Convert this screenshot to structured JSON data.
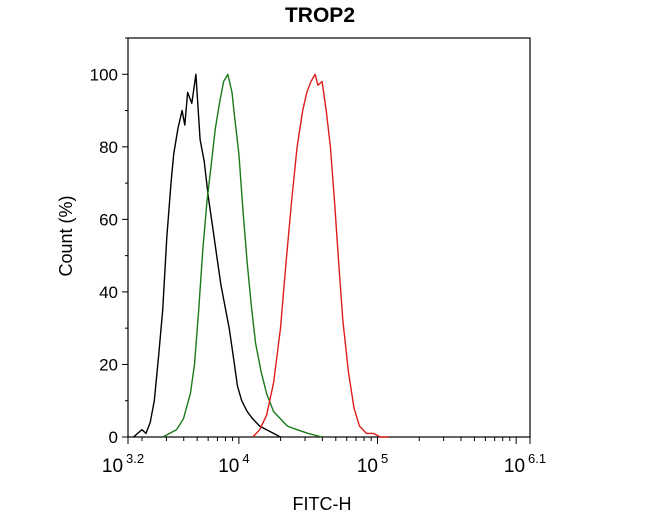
{
  "chart_data": {
    "type": "line",
    "title": "TROP2",
    "xlabel": "FITC-H",
    "ylabel": "Count  (%)",
    "x_scale": "log10",
    "xlim": [
      3.2,
      6.1
    ],
    "ylim": [
      0,
      110
    ],
    "x_ticks": [
      {
        "value": 3.2,
        "base": "10",
        "exp": "3.2"
      },
      {
        "value": 4,
        "base": "10",
        "exp": "4"
      },
      {
        "value": 5,
        "base": "10",
        "exp": "5"
      },
      {
        "value": 6.1,
        "base": "10",
        "exp": "6.1"
      }
    ],
    "y_ticks": [
      0,
      20,
      40,
      60,
      80,
      100
    ],
    "grid": false,
    "legend": "none",
    "series": [
      {
        "color": "#000000",
        "x": [
          3.24,
          3.27,
          3.3,
          3.33,
          3.36,
          3.39,
          3.42,
          3.45,
          3.48,
          3.51,
          3.53,
          3.56,
          3.59,
          3.61,
          3.63,
          3.66,
          3.69,
          3.72,
          3.75,
          3.78,
          3.81,
          3.84,
          3.87,
          3.9,
          3.93,
          3.96,
          3.99,
          4.02,
          4.06,
          4.1,
          4.15,
          4.2,
          4.25,
          4.3
        ],
        "y": [
          0,
          1,
          2,
          1,
          4,
          10,
          22,
          35,
          55,
          70,
          78,
          85,
          90,
          86,
          95,
          92,
          100,
          82,
          76,
          66,
          58,
          50,
          42,
          36,
          30,
          22,
          14,
          10,
          7,
          5,
          3,
          2,
          1,
          0
        ]
      },
      {
        "color": "#1a7a1a",
        "x": [
          3.45,
          3.5,
          3.55,
          3.6,
          3.65,
          3.68,
          3.71,
          3.74,
          3.77,
          3.8,
          3.83,
          3.86,
          3.89,
          3.92,
          3.95,
          3.97,
          4.0,
          4.03,
          4.06,
          4.09,
          4.12,
          4.16,
          4.2,
          4.25,
          4.3,
          4.35,
          4.42,
          4.5,
          4.6
        ],
        "y": [
          0,
          1,
          2,
          5,
          12,
          20,
          35,
          52,
          65,
          75,
          85,
          92,
          98,
          100,
          95,
          88,
          78,
          62,
          48,
          36,
          26,
          18,
          12,
          7,
          5,
          3,
          2,
          1,
          0
        ]
      },
      {
        "color": "#dd1c1c",
        "x": [
          4.1,
          4.15,
          4.2,
          4.25,
          4.3,
          4.34,
          4.38,
          4.42,
          4.46,
          4.49,
          4.52,
          4.55,
          4.57,
          4.6,
          4.63,
          4.66,
          4.69,
          4.72,
          4.75,
          4.79,
          4.83,
          4.87,
          4.92,
          4.97,
          5.02,
          5.08
        ],
        "y": [
          0,
          2,
          6,
          15,
          30,
          48,
          65,
          80,
          90,
          95,
          98,
          100,
          97,
          98,
          90,
          80,
          65,
          48,
          32,
          18,
          8,
          3,
          1,
          1,
          0,
          0
        ]
      }
    ]
  }
}
